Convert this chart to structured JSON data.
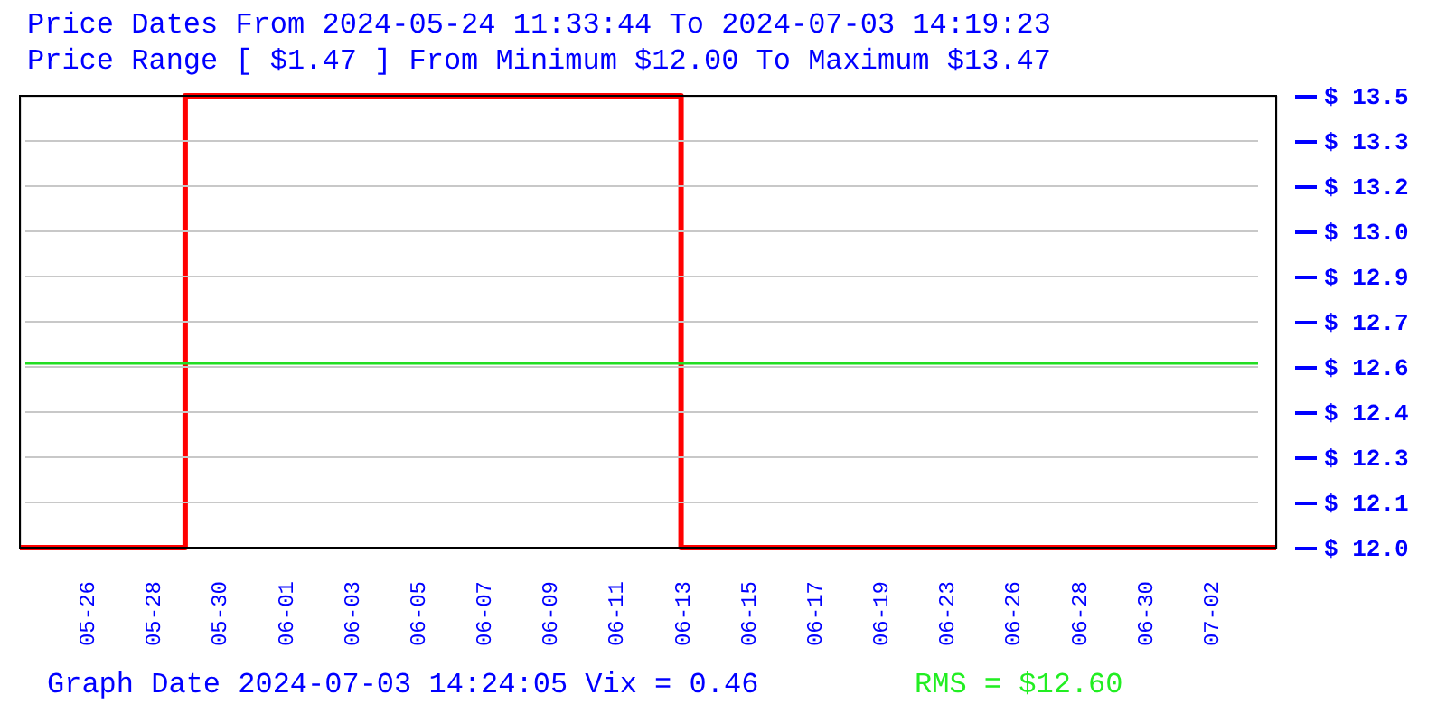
{
  "chart_data": {
    "type": "step",
    "title": "Price Dates From 2024-05-24 11:33:44 To 2024-07-03 14:19:23",
    "subtitle": "Price Range [ $1.47 ] From Minimum $12.00 To Maximum $13.47",
    "categories": [
      null,
      null,
      "05-26",
      null,
      "05-28",
      null,
      "05-30",
      null,
      "06-01",
      null,
      "06-03",
      null,
      "06-05",
      null,
      "06-07",
      null,
      "06-09",
      null,
      "06-11",
      null,
      "06-13",
      null,
      "06-15",
      null,
      "06-17",
      null,
      "06-19",
      null,
      "06-23",
      null,
      "06-26",
      null,
      "06-28",
      null,
      "06-30",
      null,
      "07-02",
      null,
      null
    ],
    "series": [
      {
        "color": "#ff0000",
        "values": [
          12.0,
          12.0,
          12.0,
          12.0,
          12.0,
          13.47,
          13.47,
          13.47,
          13.47,
          13.47,
          13.47,
          13.47,
          13.47,
          13.47,
          13.47,
          13.47,
          13.47,
          13.47,
          13.47,
          13.47,
          12.0,
          12.0,
          12.0,
          12.0,
          12.0,
          12.0,
          12.0,
          12.0,
          12.0,
          12.0,
          12.0,
          12.0,
          12.0,
          12.0,
          12.0,
          12.0,
          12.0,
          12.0,
          12.0
        ]
      }
    ],
    "ylim": [
      12.0,
      13.47
    ],
    "yticks": [
      {
        "value": 12.0,
        "label": "$ 12.0"
      },
      {
        "value": 12.147,
        "label": "$ 12.1"
      },
      {
        "value": 12.294,
        "label": "$ 12.3"
      },
      {
        "value": 12.441,
        "label": "$ 12.4"
      },
      {
        "value": 12.588,
        "label": "$ 12.6"
      },
      {
        "value": 12.735,
        "label": "$ 12.7"
      },
      {
        "value": 12.882,
        "label": "$ 12.9"
      },
      {
        "value": 13.029,
        "label": "$ 13.0"
      },
      {
        "value": 13.176,
        "label": "$ 13.2"
      },
      {
        "value": 13.323,
        "label": "$ 13.3"
      },
      {
        "value": 13.47,
        "label": "$ 13.5"
      }
    ],
    "ref_lines": [
      {
        "axis": "y",
        "value": 12.6,
        "color": "#22dd22"
      }
    ],
    "grid": "y",
    "annotations": [
      "Graph Date 2024-07-03 14:24:05 Vix = 0.46",
      "RMS = $12.60"
    ]
  }
}
